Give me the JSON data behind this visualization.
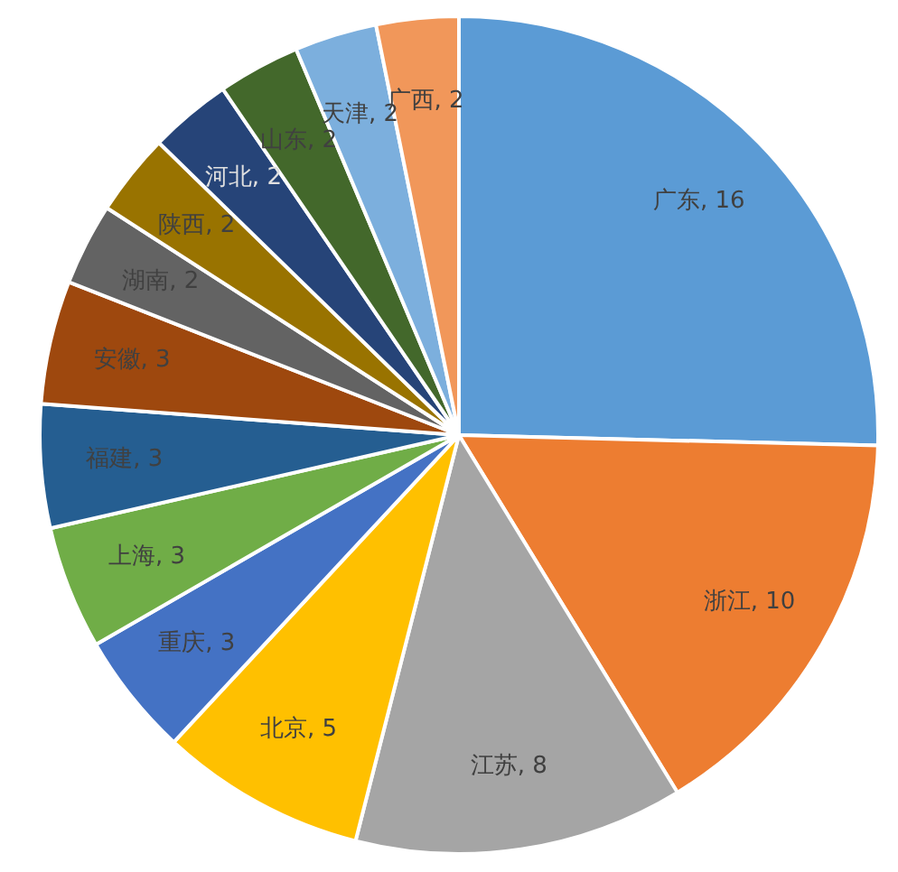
{
  "chart_data": {
    "type": "pie",
    "categories": [
      "广东",
      "浙江",
      "江苏",
      "北京",
      "重庆",
      "上海",
      "福建",
      "安徽",
      "湖南",
      "陕西",
      "河北",
      "山东",
      "天津",
      "广西"
    ],
    "values": [
      16,
      10,
      8,
      5,
      3,
      3,
      3,
      3,
      2,
      2,
      2,
      2,
      2,
      2
    ],
    "value_labels": [
      ", 16",
      ", 10",
      ", 8",
      ", 5",
      ", 3",
      ", 3",
      ", 3",
      ", 3",
      ", 2",
      ", 2",
      ", 2",
      ", 2",
      ", 2",
      ", 2"
    ],
    "colors": [
      "#5b9bd5",
      "#ed7d31",
      "#a5a5a5",
      "#ffc000",
      "#4472c4",
      "#70ad47",
      "#255e91",
      "#9e480e",
      "#636363",
      "#997300",
      "#264478",
      "#43682b",
      "#7cafdd",
      "#f1975a"
    ],
    "legend": false
  }
}
